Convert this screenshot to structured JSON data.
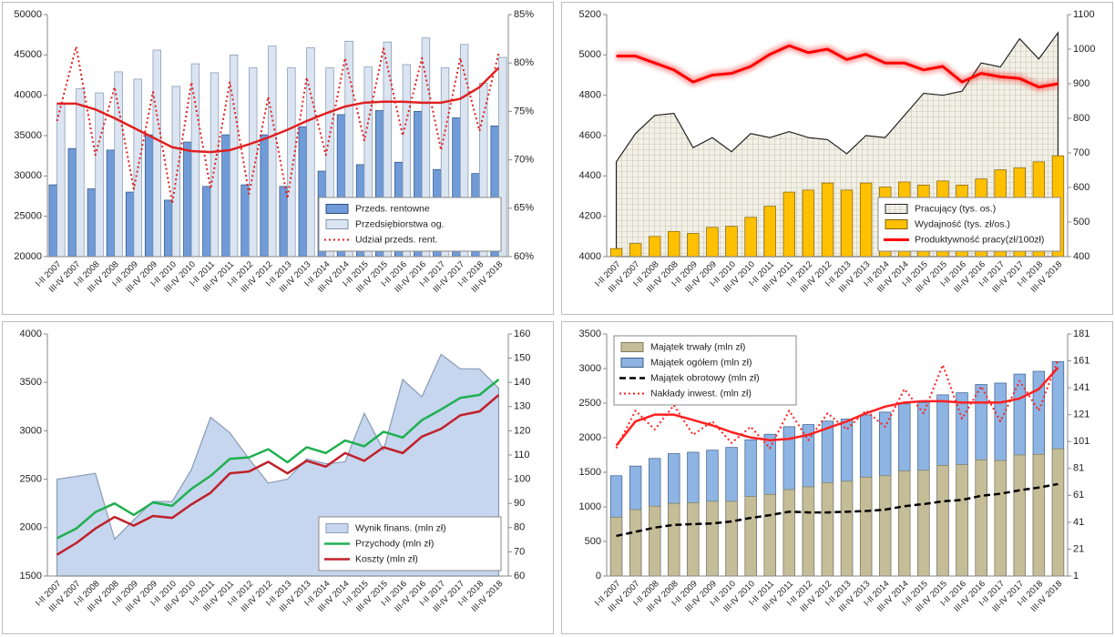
{
  "chart_data": [
    {
      "type": "combo",
      "bar_layout": "grouped",
      "legend": "lower right",
      "grid": false,
      "categories": [
        "I-II 2007",
        "III-IV 2007",
        "I-II 2008",
        "III-IV 2008",
        "I-II 2009",
        "III-IV 2009",
        "I-II 2010",
        "III-IV 2010",
        "I-II 2011",
        "III-IV 2011",
        "I-II 2012",
        "III-IV 2012",
        "I-II 2013",
        "III-IV 2013",
        "I-II 2014",
        "III-IV 2014",
        "I-II 2015",
        "III-IV 2015",
        "I-II 2016",
        "III-IV 2016",
        "I-II 2017",
        "III-IV 2017",
        "I-II 2018",
        "III-IV 2018"
      ],
      "ylim": [
        20000,
        50000
      ],
      "yticks": [
        20000,
        25000,
        30000,
        35000,
        40000,
        45000,
        50000
      ],
      "y2lim": [
        60,
        85
      ],
      "y2ticks": [
        {
          "value": 60,
          "label": "60%"
        },
        {
          "value": 65,
          "label": "65%"
        },
        {
          "value": 70,
          "label": "70%"
        },
        {
          "value": 75,
          "label": "75%"
        },
        {
          "value": 80,
          "label": "80%"
        },
        {
          "value": 85,
          "label": "85%"
        }
      ],
      "series": [
        {
          "name": "Przeds. rentowne",
          "kind": "bar",
          "color": "#6f9bd8",
          "stroke": "#2f4f7f",
          "values": [
            28900,
            33400,
            28400,
            33200,
            28000,
            35100,
            27000,
            34200,
            28700,
            35100,
            28900,
            35100,
            28700,
            36100,
            30600,
            37600,
            31400,
            38100,
            31700,
            38000,
            30800,
            37200,
            30300,
            36200
          ]
        },
        {
          "name": "Przedsiębiorstwa og.",
          "kind": "bar",
          "color": "#dbe5f1",
          "stroke": "#7f93b0",
          "values": [
            39000,
            40800,
            40300,
            42900,
            42000,
            45600,
            41100,
            43900,
            42800,
            45000,
            43400,
            46100,
            43400,
            45900,
            43400,
            46700,
            43500,
            46600,
            43800,
            47100,
            43400,
            46300,
            41500,
            44700
          ]
        },
        {
          "name": "Udział przeds. rent.",
          "kind": "line",
          "axis": "y2",
          "color": "#e02020",
          "dash": "dotted",
          "width": 2,
          "values": [
            74,
            81.7,
            70.5,
            77.5,
            67,
            77,
            65.5,
            78,
            67,
            78,
            66.5,
            76.5,
            66,
            78.5,
            70.5,
            80.5,
            72,
            81.5,
            72.5,
            80.5,
            71,
            80.5,
            73,
            81
          ]
        },
        {
          "kind": "line",
          "axis": "y2",
          "color": "#e02020",
          "width": 2.5,
          "values": [
            75.8,
            75.8,
            75.2,
            74.3,
            73.3,
            72.3,
            71.3,
            70.9,
            70.8,
            71,
            71.6,
            72.3,
            73.1,
            74,
            74.8,
            75.5,
            75.9,
            76,
            76,
            75.9,
            75.9,
            76.3,
            77.5,
            79.5
          ]
        }
      ]
    },
    {
      "type": "combo",
      "bar_layout": "overlap",
      "legend": "lower right",
      "grid": false,
      "categories": [
        "I-II 2007",
        "III-IV 2007",
        "I-II 2008",
        "III-IV 2008",
        "I-II 2009",
        "III-IV 2009",
        "I-II 2010",
        "III-IV 2010",
        "I-II 2011",
        "III-IV 2011",
        "I-II 2012",
        "III-IV 2012",
        "I-II 2013",
        "III-IV 2013",
        "I-II 2014",
        "III-IV 2014",
        "I-II 2015",
        "III-IV 2015",
        "I-II 2016",
        "III-IV 2016",
        "I-II 2017",
        "III-IV 2017",
        "I-II 2018",
        "III-IV 2018"
      ],
      "ylim": [
        4000,
        5200
      ],
      "yticks": [
        4000,
        4200,
        4400,
        4600,
        4800,
        5000,
        5200
      ],
      "y2lim": [
        400,
        1100
      ],
      "y2ticks": [
        400,
        500,
        600,
        700,
        800,
        900,
        1000,
        1100
      ],
      "series": [
        {
          "name": "Pracujący (tys. os.)",
          "kind": "area",
          "color": "#e8e4d8",
          "stroke": "#222",
          "hatch": true,
          "values": [
            4470,
            4610,
            4700,
            4710,
            4540,
            4590,
            4520,
            4610,
            4590,
            4620,
            4590,
            4580,
            4510,
            4600,
            4590,
            4700,
            4810,
            4800,
            4820,
            4960,
            4940,
            5080,
            4980,
            5110
          ]
        },
        {
          "name": "Wydajność (tys. zł/os.)",
          "kind": "bar",
          "color": "#ffc000",
          "stroke": "#7f6000",
          "values": [
            4040,
            4065,
            4100,
            4125,
            4115,
            4145,
            4150,
            4195,
            4250,
            4320,
            4330,
            4365,
            4330,
            4365,
            4345,
            4370,
            4355,
            4375,
            4355,
            4385,
            4430,
            4440,
            4470,
            4500
          ]
        },
        {
          "name": "Produktywność pracy(zł/100zł)",
          "kind": "line",
          "axis": "y2",
          "color": "#ff0000",
          "width": 3,
          "glow": true,
          "values": [
            980,
            980,
            960,
            940,
            905,
            925,
            930,
            950,
            985,
            1010,
            990,
            1000,
            970,
            985,
            960,
            960,
            940,
            950,
            905,
            930,
            920,
            915,
            890,
            900
          ]
        }
      ]
    },
    {
      "type": "combo",
      "bar_layout": "overlap",
      "legend": "lower right",
      "grid": false,
      "categories": [
        "I-II 2007",
        "III-IV 2007",
        "I-II 2008",
        "III-IV 2008",
        "I-II 2009",
        "III-IV 2009",
        "I-II 2010",
        "III-IV 2010",
        "I-II 2011",
        "III-IV 2011",
        "I-II 2012",
        "III-IV 2012",
        "I-II 2013",
        "III-IV 2013",
        "I-II 2014",
        "III-IV 2014",
        "I-II 2015",
        "III-IV 2015",
        "I-II 2016",
        "III-IV 2016",
        "I-II 2017",
        "III-IV 2017",
        "I-II 2018",
        "III-IV 2018"
      ],
      "ylim": [
        1500,
        4000
      ],
      "yticks": [
        1500,
        2000,
        2500,
        3000,
        3500,
        4000
      ],
      "y2lim": [
        60,
        160
      ],
      "y2ticks": [
        60,
        70,
        80,
        90,
        100,
        110,
        120,
        130,
        140,
        150,
        160
      ],
      "series": [
        {
          "name": "Wynik finans. (mln zł)",
          "kind": "area",
          "color": "#c6d6ee",
          "stroke": "#8a9bb5",
          "values": [
            2500,
            2530,
            2560,
            1880,
            2080,
            2270,
            2270,
            2600,
            3140,
            2980,
            2710,
            2460,
            2500,
            2710,
            2660,
            2680,
            3180,
            2800,
            3530,
            3350,
            3790,
            3640,
            3640,
            3440
          ]
        },
        {
          "name": "Przychody (mln zł)",
          "kind": "line",
          "axis": "y2",
          "color": "#1fb050",
          "width": 2.5,
          "values": [
            75.6,
            79.6,
            86.4,
            90,
            85.2,
            90.4,
            89,
            96,
            101.4,
            108.4,
            109,
            112.4,
            107,
            113.2,
            110.8,
            116,
            113.6,
            119.6,
            117.2,
            124.4,
            128.8,
            133.6,
            134.8,
            141.2
          ]
        },
        {
          "name": "Koszty (mln zł)",
          "kind": "line",
          "axis": "y2",
          "color": "#c0202a",
          "width": 2.5,
          "values": [
            68.8,
            73.6,
            79.6,
            84.4,
            80.8,
            84.8,
            84,
            89.6,
            94.4,
            102.4,
            103.2,
            107.2,
            102.4,
            107.6,
            105.2,
            110.8,
            107.6,
            113.2,
            110.8,
            117.6,
            120.8,
            126.4,
            128,
            134.8
          ]
        }
      ]
    },
    {
      "type": "combo",
      "bar_layout": "overlap",
      "legend": "upper left",
      "grid": false,
      "categories": [
        "I-II 2007",
        "III-IV 2007",
        "I-II 2008",
        "III-IV 2008",
        "I-II 2009",
        "III-IV 2009",
        "I-II 2010",
        "III-IV 2010",
        "I-II 2011",
        "III-IV 2011",
        "I-II 2012",
        "III-IV 2012",
        "I-II 2013",
        "III-IV 2013",
        "I-II 2014",
        "III-IV 2014",
        "I-II 2015",
        "III-IV 2015",
        "I-II 2016",
        "III-IV 2016",
        "I-II 2017",
        "III-IV 2017",
        "I-II 2018",
        "III-IV 2018"
      ],
      "ylim": [
        0,
        3500
      ],
      "yticks": [
        0,
        500,
        1000,
        1500,
        2000,
        2500,
        3000,
        3500
      ],
      "y2lim": [
        1,
        181
      ],
      "y2ticks": [
        1,
        21,
        41,
        61,
        81,
        101,
        121,
        141,
        161,
        181
      ],
      "series": [
        {
          "name": "Majątek trwały (mln zł)",
          "kind": "bar",
          "color": "#c4bd97",
          "stroke": "#7f7a5f",
          "values": [
            850,
            960,
            1010,
            1050,
            1060,
            1080,
            1080,
            1150,
            1180,
            1250,
            1290,
            1350,
            1370,
            1430,
            1450,
            1520,
            1530,
            1600,
            1610,
            1680,
            1670,
            1750,
            1760,
            1840
          ]
        },
        {
          "name": "Majątek ogółem (mln zł)",
          "kind": "bar",
          "color": "#8eb4e3",
          "stroke": "#385d8a",
          "values": [
            1450,
            1590,
            1700,
            1770,
            1790,
            1820,
            1860,
            1970,
            2050,
            2160,
            2190,
            2240,
            2270,
            2330,
            2370,
            2490,
            2510,
            2620,
            2650,
            2770,
            2790,
            2920,
            2960,
            3100
          ]
        },
        {
          "name": "Majątek obrotowy (mln zł)",
          "kind": "line",
          "color": "#000000",
          "dash": "dashed",
          "width": 2.5,
          "values": [
            580,
            640,
            700,
            740,
            750,
            760,
            790,
            840,
            880,
            930,
            920,
            920,
            930,
            940,
            960,
            1010,
            1040,
            1080,
            1100,
            1160,
            1190,
            1240,
            1280,
            1330
          ]
        },
        {
          "name": "Nakłady inwest. (mln zł)",
          "kind": "line",
          "axis": "y2",
          "color": "#ff2020",
          "dash": "dotted",
          "width": 2,
          "values": [
            96,
            124,
            110,
            128,
            106,
            116,
            100,
            112,
            96,
            124,
            102,
            122,
            110,
            124,
            112,
            140,
            122,
            158,
            118,
            142,
            116,
            146,
            124,
            162
          ]
        },
        {
          "kind": "line",
          "axis": "y2",
          "color": "#ff2020",
          "width": 2.5,
          "values": [
            98,
            116,
            121,
            121,
            117,
            113,
            108,
            104,
            102,
            103,
            106,
            111,
            116,
            122,
            127,
            130,
            131,
            131,
            130,
            130,
            130,
            133,
            140,
            156
          ]
        }
      ]
    }
  ]
}
